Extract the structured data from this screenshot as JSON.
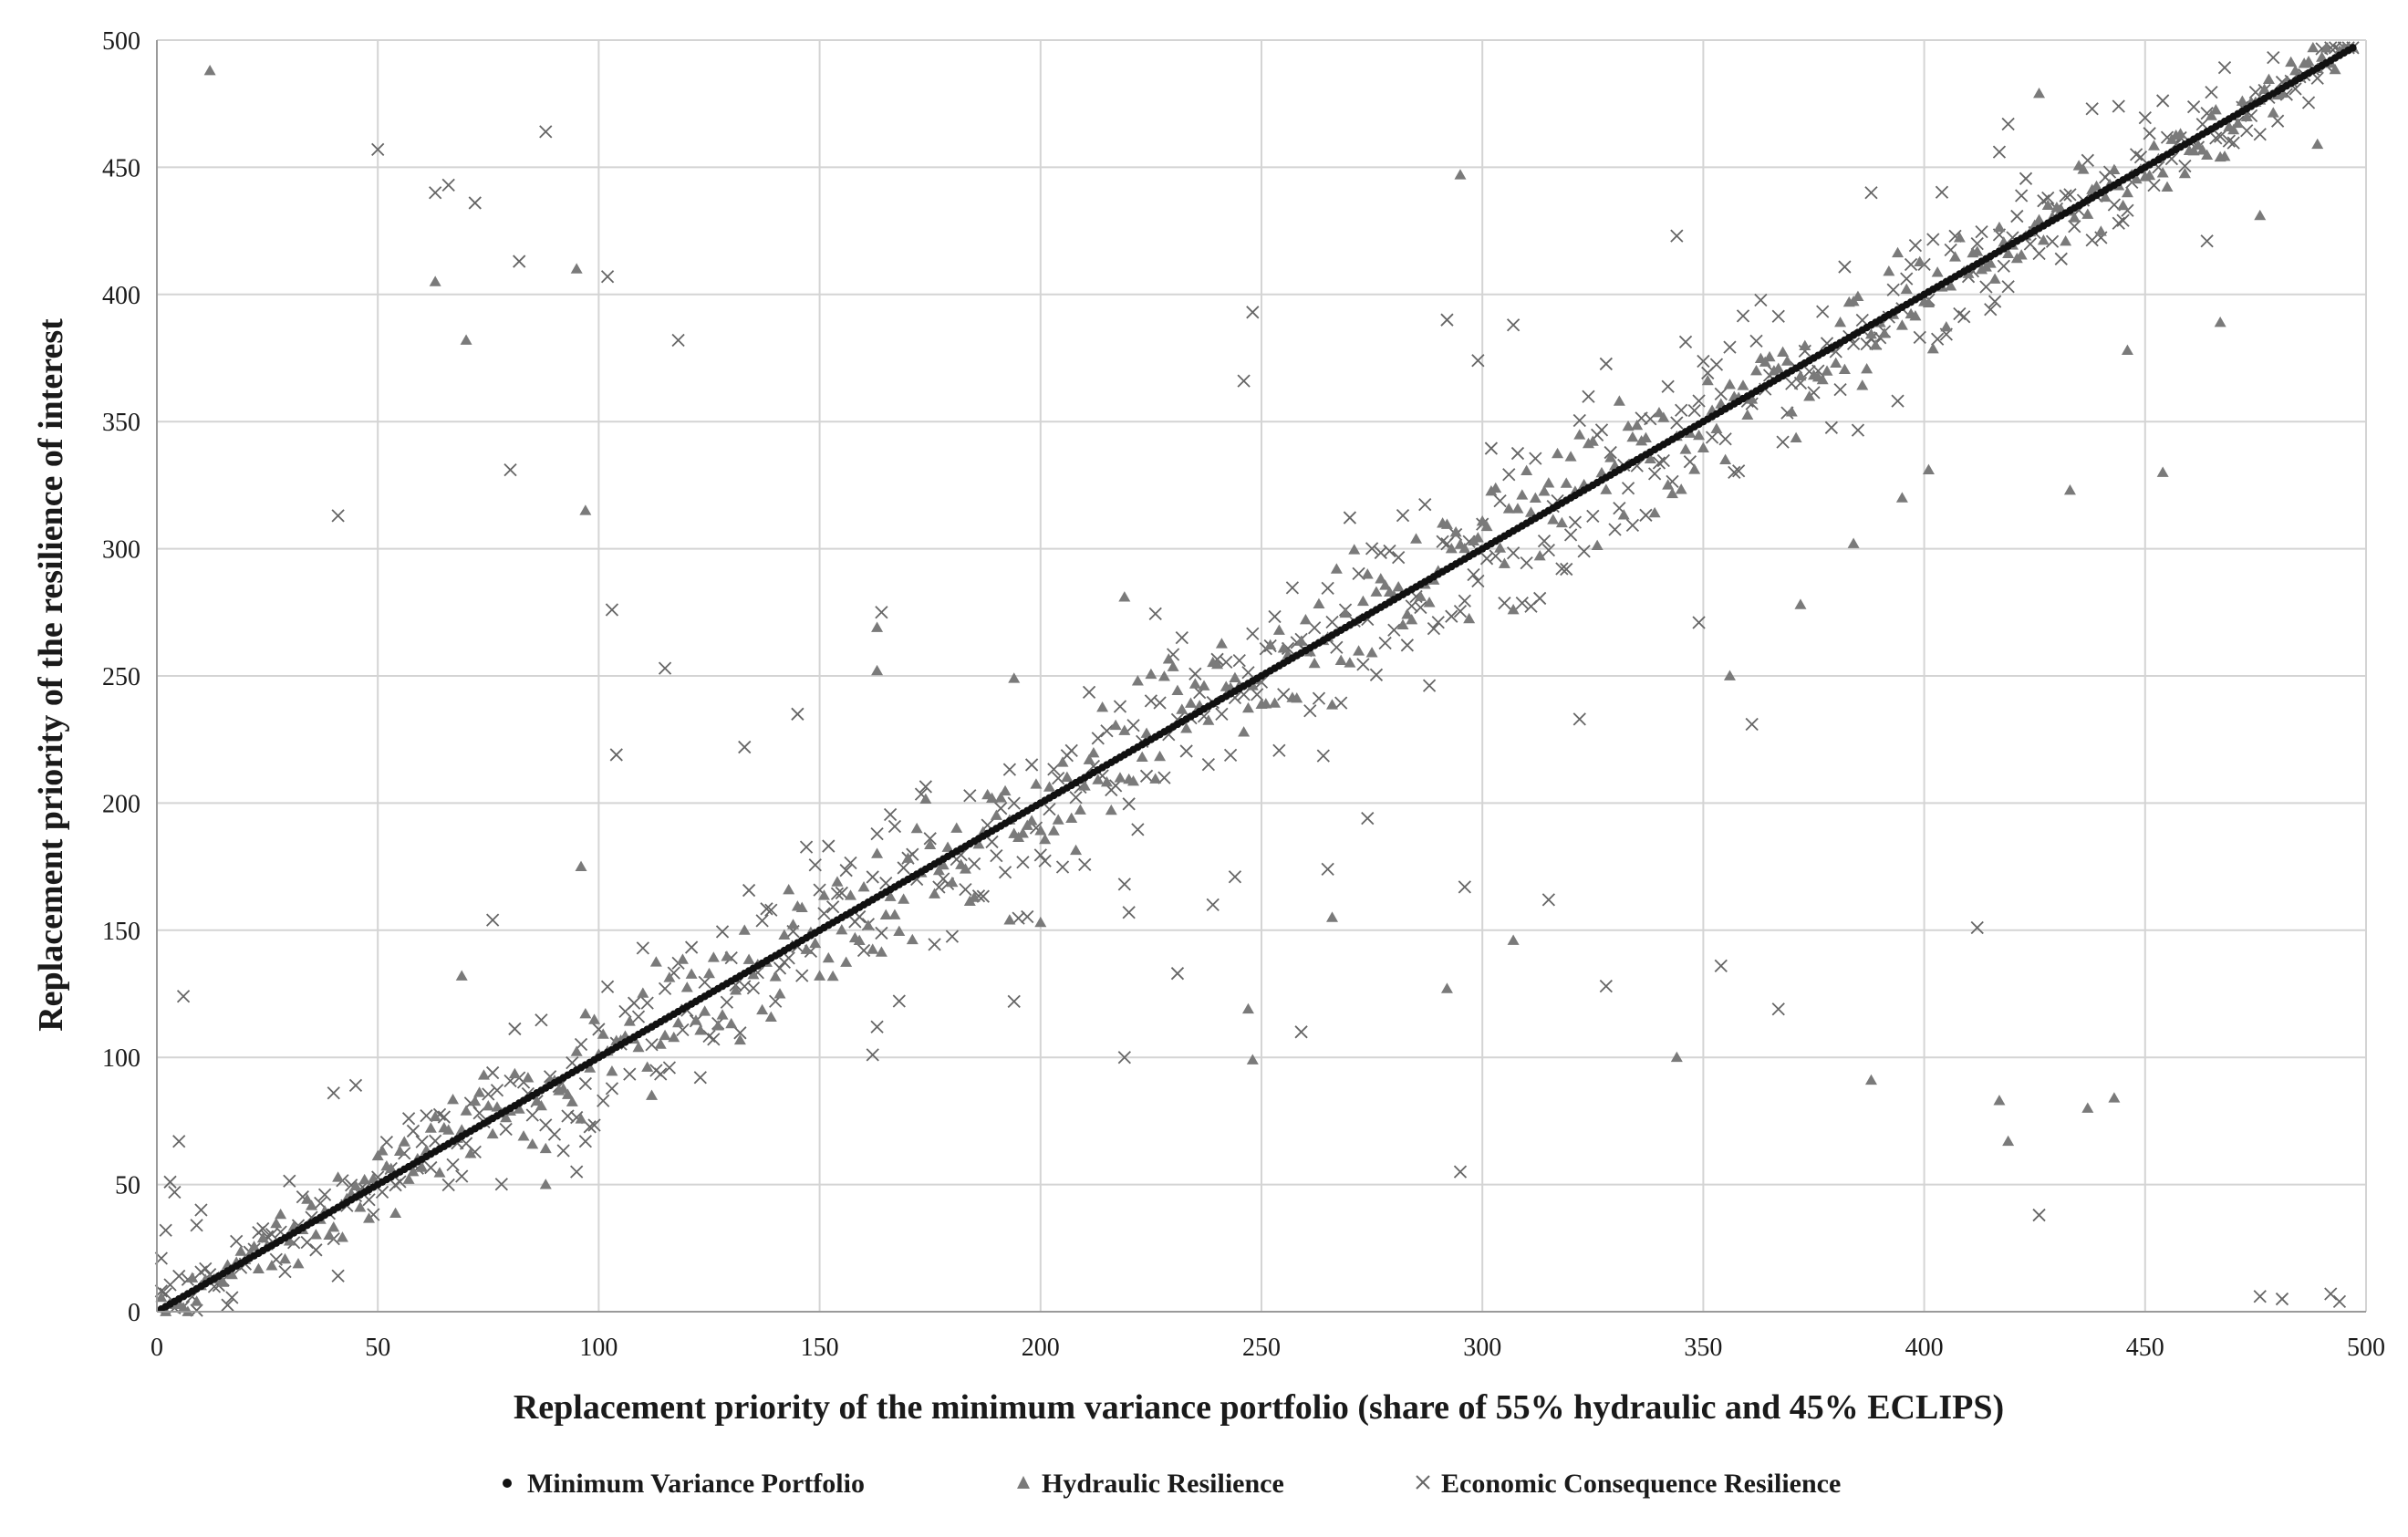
{
  "chart_data": {
    "type": "scatter",
    "xlabel": "Replacement priority of the minimum variance portfolio (share of 55% hydraulic and 45% ECLIPS)",
    "ylabel": "Replacement priority of the resilience of interest",
    "xlim": [
      0,
      500
    ],
    "ylim": [
      0,
      500
    ],
    "x_ticks": [
      "0",
      "50",
      "100",
      "150",
      "200",
      "250",
      "300",
      "350",
      "400",
      "450",
      "500"
    ],
    "y_ticks": [
      "0",
      "50",
      "100",
      "150",
      "200",
      "250",
      "300",
      "350",
      "400",
      "450",
      "500"
    ],
    "grid": true,
    "legend_position": "bottom",
    "series": [
      {
        "name": "Minimum Variance Portfolio",
        "marker": "circle",
        "color": "#111111",
        "points": "diagonal: y = x for x = 1..497"
      },
      {
        "name": "Hydraulic Resilience",
        "marker": "triangle",
        "color": "#7a7a7a",
        "outliers": [
          [
            12,
            488
          ],
          [
            63,
            405
          ],
          [
            70,
            382
          ],
          [
            95,
            410
          ],
          [
            97,
            315
          ],
          [
            96,
            175
          ],
          [
            69,
            132
          ],
          [
            88,
            50
          ],
          [
            295,
            447
          ],
          [
            292,
            127
          ],
          [
            307,
            146
          ],
          [
            247,
            119
          ],
          [
            248,
            99
          ],
          [
            219,
            281
          ],
          [
            266,
            155
          ],
          [
            200,
            153
          ],
          [
            193,
            154
          ],
          [
            194,
            249
          ],
          [
            163,
            269
          ],
          [
            163,
            252
          ],
          [
            344,
            100
          ],
          [
            356,
            250
          ],
          [
            372,
            278
          ],
          [
            384,
            302
          ],
          [
            388,
            91
          ],
          [
            395,
            320
          ],
          [
            401,
            331
          ],
          [
            417,
            83
          ],
          [
            419,
            67
          ],
          [
            426,
            479
          ],
          [
            433,
            323
          ],
          [
            437,
            80
          ],
          [
            443,
            84
          ],
          [
            446,
            378
          ],
          [
            454,
            330
          ],
          [
            467,
            389
          ],
          [
            476,
            431
          ],
          [
            489,
            459
          ]
        ],
        "scatter_spread": 28,
        "count": 497
      },
      {
        "name": "Economic Consequence Resilience",
        "marker": "cross",
        "color": "#666666",
        "outliers": [
          [
            1,
            21
          ],
          [
            2,
            32
          ],
          [
            3,
            51
          ],
          [
            4,
            47
          ],
          [
            5,
            67
          ],
          [
            6,
            124
          ],
          [
            9,
            34
          ],
          [
            10,
            40
          ],
          [
            40,
            86
          ],
          [
            41,
            313
          ],
          [
            45,
            89
          ],
          [
            50,
            457
          ],
          [
            63,
            440
          ],
          [
            66,
            443
          ],
          [
            72,
            436
          ],
          [
            76,
            154
          ],
          [
            80,
            331
          ],
          [
            82,
            413
          ],
          [
            88,
            464
          ],
          [
            95,
            55
          ],
          [
            97,
            67
          ],
          [
            102,
            407
          ],
          [
            103,
            276
          ],
          [
            104,
            219
          ],
          [
            115,
            253
          ],
          [
            118,
            382
          ],
          [
            133,
            222
          ],
          [
            145,
            235
          ],
          [
            162,
            101
          ],
          [
            163,
            112
          ],
          [
            164,
            275
          ],
          [
            194,
            122
          ],
          [
            219,
            100
          ],
          [
            220,
            157
          ],
          [
            231,
            133
          ],
          [
            239,
            160
          ],
          [
            244,
            171
          ],
          [
            246,
            366
          ],
          [
            248,
            393
          ],
          [
            259,
            110
          ],
          [
            265,
            174
          ],
          [
            274,
            194
          ],
          [
            295,
            55
          ],
          [
            296,
            167
          ],
          [
            292,
            390
          ],
          [
            299,
            374
          ],
          [
            307,
            388
          ],
          [
            315,
            162
          ],
          [
            322,
            233
          ],
          [
            328,
            128
          ],
          [
            344,
            423
          ],
          [
            349,
            271
          ],
          [
            354,
            136
          ],
          [
            361,
            231
          ],
          [
            367,
            119
          ],
          [
            388,
            440
          ],
          [
            412,
            151
          ],
          [
            417,
            456
          ],
          [
            419,
            467
          ],
          [
            426,
            38
          ],
          [
            438,
            473
          ],
          [
            444,
            474
          ],
          [
            464,
            421
          ],
          [
            476,
            6
          ],
          [
            481,
            5
          ],
          [
            492,
            7
          ],
          [
            494,
            4
          ]
        ],
        "scatter_spread": 36,
        "count": 497
      }
    ]
  },
  "legend": {
    "items": [
      {
        "marker": "•",
        "label": "Minimum Variance Portfolio"
      },
      {
        "marker": "▲",
        "label": "Hydraulic Resilience"
      },
      {
        "marker": "×",
        "label": "Economic Consequence Resilience"
      }
    ]
  }
}
